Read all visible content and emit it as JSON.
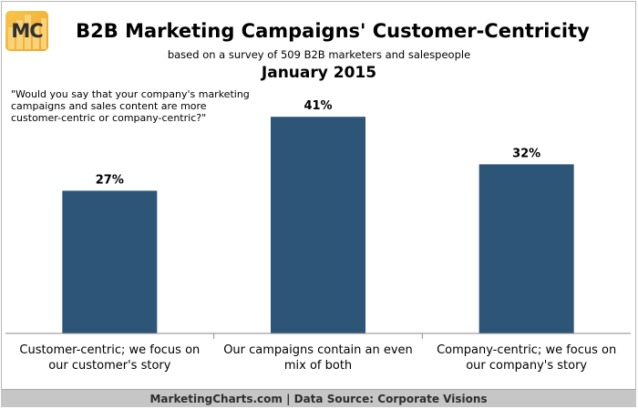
{
  "header": {
    "logo_text": "MC",
    "title": "B2B Marketing Campaigns' Customer-Centricity",
    "subtitle": "based on a survey of 509 B2B marketers and salespeople",
    "date": "January 2015"
  },
  "question": "\"Would you say that your company's marketing campaigns and sales content are more customer-centric or company-centric?\"",
  "footer": {
    "text": "MarketingCharts.com | Data Source: Corporate Visions"
  },
  "colors": {
    "bar": "#2d5577",
    "logo": "#f2ae33",
    "footer_bg": "#c6c6c6"
  },
  "chart_data": {
    "type": "bar",
    "categories": [
      [
        "Customer-centric; we focus on",
        "our customer's story"
      ],
      [
        "Our campaigns contain an even",
        "mix of both"
      ],
      [
        "Company-centric; we focus on",
        "our company's story"
      ]
    ],
    "values": [
      27,
      41,
      32
    ],
    "data_labels": [
      "27%",
      "41%",
      "32%"
    ],
    "ylim": [
      0,
      50
    ],
    "grid": false,
    "legend": "none"
  }
}
